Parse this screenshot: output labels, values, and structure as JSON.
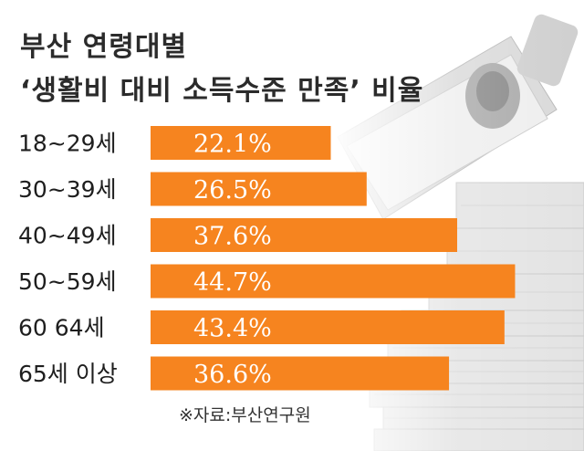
{
  "header": {
    "title_line1": "부산 연령대별",
    "title_line2": "‘생활비 대비 소득수준 만족’ 비율"
  },
  "chart_data": {
    "type": "bar",
    "orientation": "horizontal",
    "categories": [
      "18~29세",
      "30~39세",
      "40~49세",
      "50~59세",
      "60 64세",
      "65세 이상"
    ],
    "values": [
      22.1,
      26.5,
      37.6,
      44.7,
      43.4,
      36.6
    ],
    "value_labels": [
      "22.1%",
      "26.5%",
      "37.6%",
      "44.7%",
      "43.4%",
      "36.6%"
    ],
    "unit": "%",
    "xlim": [
      0,
      47
    ],
    "bar_color": "#f6841f",
    "grid": false,
    "legend": "none"
  },
  "footer": {
    "source": "※자료:부산연구원"
  },
  "colors": {
    "title": "#2b2b2b",
    "bar": "#f6841f",
    "value_text": "#ffffff"
  }
}
